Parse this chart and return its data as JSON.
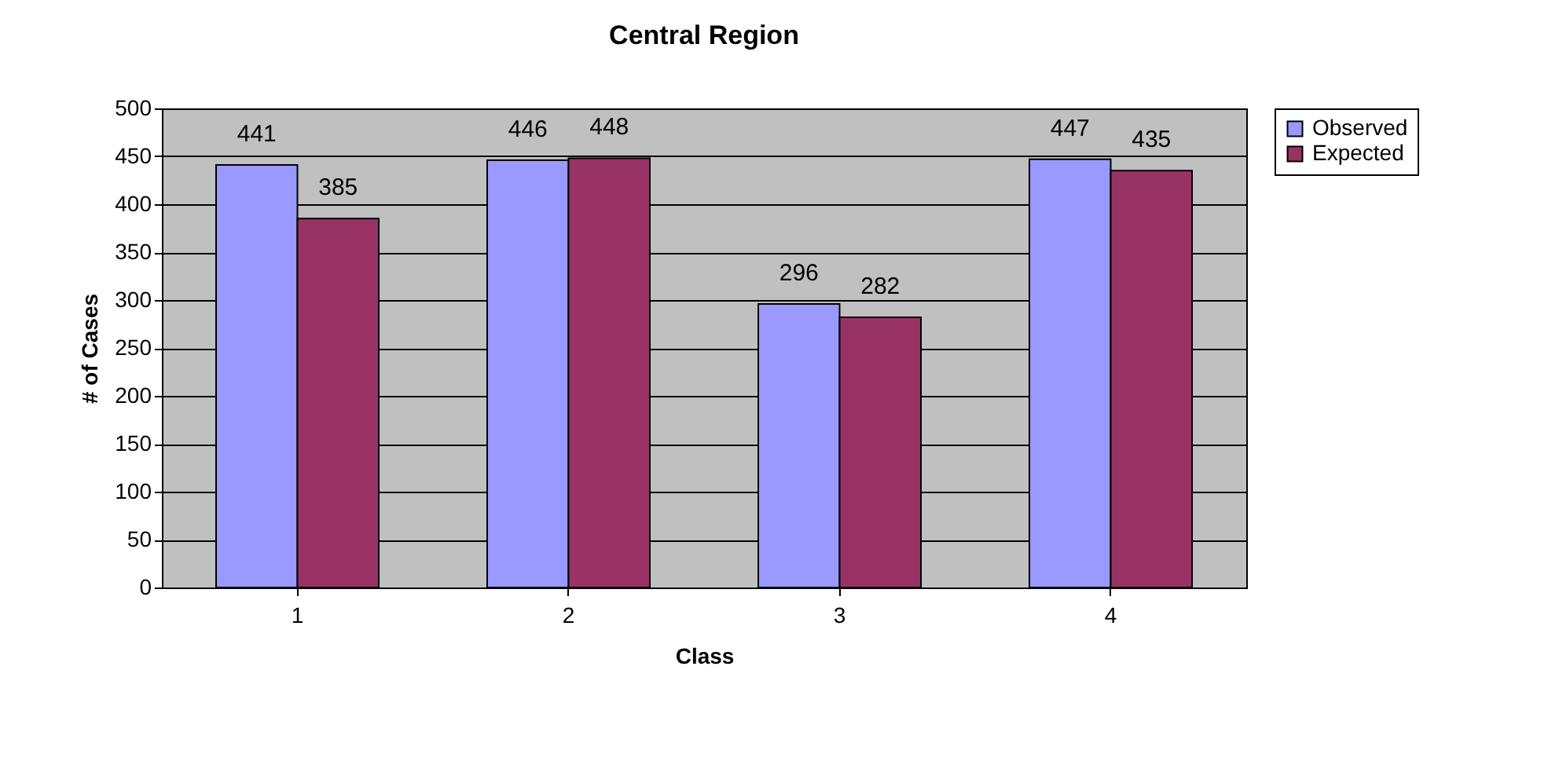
{
  "chart_data": {
    "type": "bar",
    "title": "Central Region",
    "xlabel": "Class",
    "ylabel": "# of Cases",
    "categories": [
      "1",
      "2",
      "3",
      "4"
    ],
    "series": [
      {
        "name": "Observed",
        "color": "#9999ff",
        "values": [
          441,
          446,
          296,
          447
        ]
      },
      {
        "name": "Expected",
        "color": "#993366",
        "values": [
          385,
          448,
          282,
          435
        ]
      }
    ],
    "ylim": [
      0,
      500
    ],
    "yticks": [
      0,
      50,
      100,
      150,
      200,
      250,
      300,
      350,
      400,
      450,
      500
    ],
    "grid": "y",
    "legend": "right",
    "data_labels": true
  }
}
